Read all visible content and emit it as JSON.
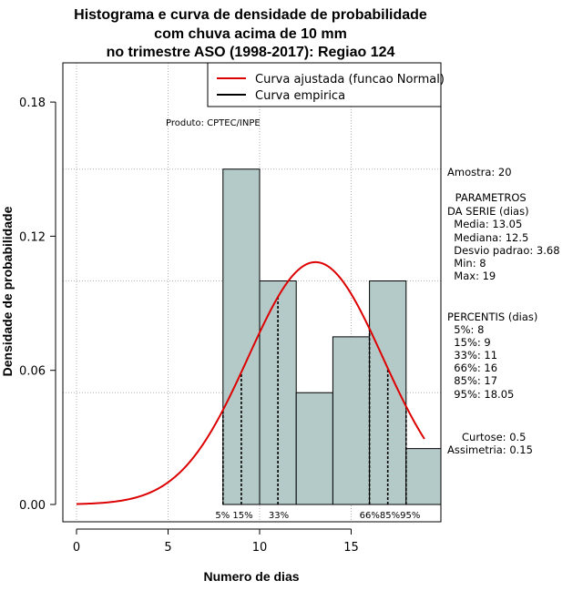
{
  "chart_data": {
    "type": "bar",
    "title_lines": [
      "Histograma e curva de densidade de probabilidade",
      "com chuva acima de 10 mm",
      "no trimestre ASO (1998-2017): Regiao 124"
    ],
    "xlabel": "Numero de dias",
    "ylabel": "Densidade de probabilidade",
    "xlim": [
      -0.7,
      19.4
    ],
    "ylim": [
      -0.0075,
      0.2
    ],
    "xticks": [
      0,
      5,
      10,
      15
    ],
    "yticks": [
      0.0,
      0.06,
      0.12,
      0.18
    ],
    "ytick_labels": [
      "0.00",
      "0.06",
      "0.12",
      "0.18"
    ],
    "grid": true,
    "bins": [
      {
        "x0": 8,
        "x1": 10,
        "density": 0.15
      },
      {
        "x0": 10,
        "x1": 12,
        "density": 0.1
      },
      {
        "x0": 12,
        "x1": 14,
        "density": 0.05
      },
      {
        "x0": 14,
        "x1": 16,
        "density": 0.075
      },
      {
        "x0": 16,
        "x1": 18,
        "density": 0.1
      },
      {
        "x0": 18,
        "x1": 20,
        "density": 0.025
      }
    ],
    "normal_curve": {
      "mean": 13.05,
      "sd": 3.68,
      "x_start": 0,
      "x_end": 19,
      "color": "#dd0000"
    },
    "bar_color": "#b4cac9",
    "legend": {
      "position": "top-right",
      "entries": [
        {
          "label": "Curva ajustada (funcao Normal)",
          "color": "#dd0000"
        },
        {
          "label": "Curva empirica",
          "color": "#000000"
        }
      ]
    },
    "produto": "Produto: CPTEC/INPE",
    "percentile_markers": [
      {
        "x": 8,
        "label": "5%"
      },
      {
        "x": 9,
        "label": "15%"
      },
      {
        "x": 11,
        "label": "33%"
      },
      {
        "x": 16,
        "label": "66%"
      },
      {
        "x": 17,
        "label": "85%"
      },
      {
        "x": 18,
        "label": "95%"
      }
    ],
    "side_text": [
      "Amostra: 20",
      " PARAMETROS",
      "DA SERIE (dias)",
      "  Media: 13.05",
      "  Mediana: 12.5",
      "  Desvio padrao: 3.68",
      "  Min: 8",
      "  Max: 19",
      "PERCENTIS (dias)",
      "  5%: 8",
      "  15%: 9",
      "  33%: 11",
      "  66%: 16",
      "  85%: 17",
      "  95%: 18.05",
      "Curtose: 0.5",
      "Assimetria: 0.15"
    ]
  }
}
